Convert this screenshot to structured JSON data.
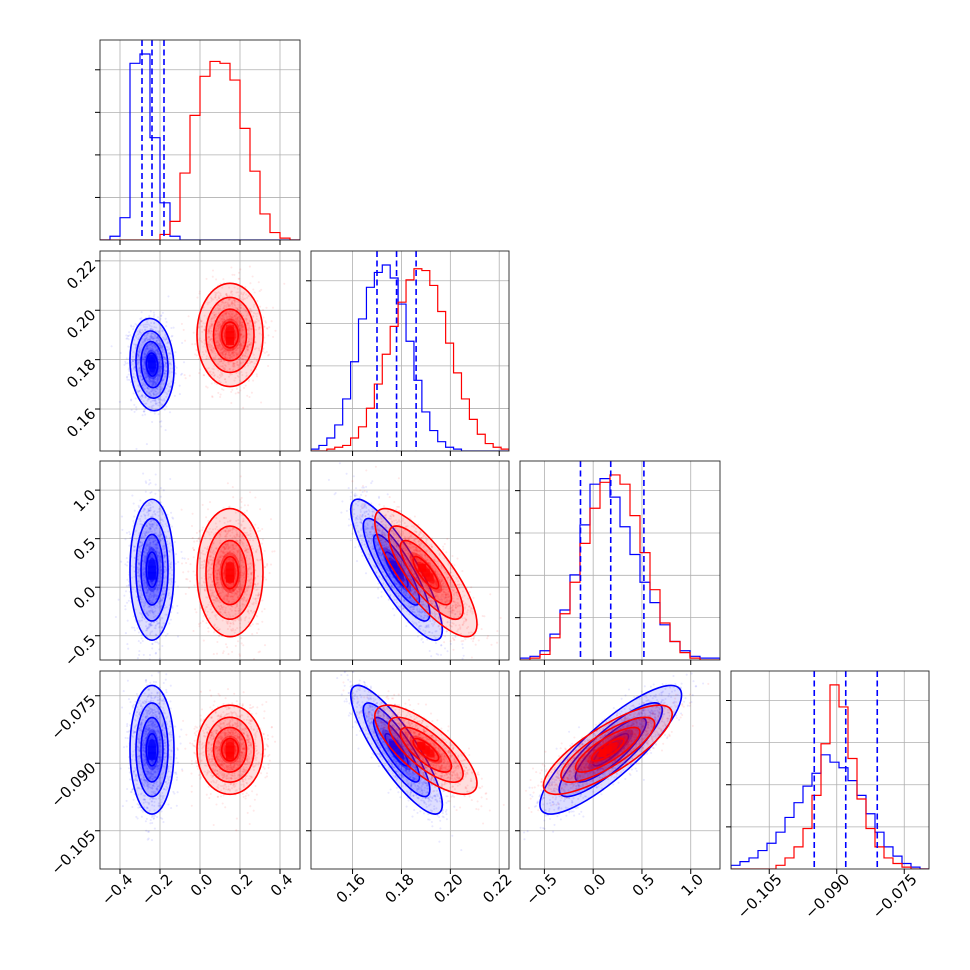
{
  "chart_data": {
    "type": "corner",
    "parameters": 4,
    "grid": true,
    "colors": {
      "series_a": "#0000ff",
      "series_b": "#ff0000"
    },
    "axes": [
      {
        "range": [
          -0.5,
          0.5
        ],
        "ticks": [
          -0.4,
          -0.2,
          0.0,
          0.2,
          0.4
        ],
        "tick_labels": [
          "−0.4",
          "−0.2",
          "0.0",
          "0.2",
          "0.4"
        ]
      },
      {
        "range": [
          0.143,
          0.224
        ],
        "ticks": [
          0.16,
          0.18,
          0.2,
          0.22
        ],
        "tick_labels": [
          "0.16",
          "0.18",
          "0.20",
          "0.22"
        ]
      },
      {
        "range": [
          -0.75,
          1.3
        ],
        "ticks": [
          -0.5,
          0.0,
          0.5,
          1.0
        ],
        "tick_labels": [
          "−0.5",
          "0.0",
          "0.5",
          "1.0"
        ]
      },
      {
        "range": [
          -0.1135,
          -0.0695
        ],
        "ticks": [
          -0.105,
          -0.09,
          -0.075
        ],
        "tick_labels": [
          "−0.105",
          "−0.090",
          "−0.075"
        ]
      }
    ],
    "series": [
      {
        "color": "#0000ff",
        "mean": [
          -0.24,
          0.178,
          0.18,
          -0.087
        ],
        "std": [
          0.05,
          0.0085,
          0.33,
          0.0065
        ],
        "quantile_lines": [
          [
            -0.29,
            -0.24,
            -0.18
          ],
          [
            0.17,
            0.178,
            0.186
          ],
          [
            -0.13,
            0.18,
            0.52
          ],
          [
            -0.095,
            -0.088,
            -0.081
          ]
        ]
      },
      {
        "color": "#ff0000",
        "mean": [
          0.15,
          0.19,
          0.15,
          -0.087
        ],
        "std": [
          0.075,
          0.0095,
          0.3,
          0.0045
        ]
      }
    ],
    "correlations": {
      "blue": {
        "0-1": -0.1,
        "0-2": 0.0,
        "0-3": 0.0,
        "1-2": -0.85,
        "1-3": -0.85,
        "2-3": 0.85
      },
      "red": {
        "0-1": 0.0,
        "0-2": 0.0,
        "0-3": 0.0,
        "1-2": -0.8,
        "1-3": -0.75,
        "2-3": 0.8
      }
    },
    "histograms": {
      "0": {
        "bins": [
          -0.5,
          0.5,
          20
        ],
        "blue": [
          0,
          2,
          12,
          95,
          100,
          55,
          20,
          2,
          0,
          0,
          0,
          0,
          0,
          0,
          0,
          0,
          0,
          0,
          0,
          0
        ],
        "red": [
          0,
          0,
          0,
          0,
          0,
          0,
          3,
          10,
          36,
          67,
          88,
          96,
          95,
          86,
          60,
          37,
          14,
          4,
          1,
          0
        ]
      },
      "1": {
        "bins": [
          0.143,
          0.224,
          25
        ],
        "blue": [
          1,
          3,
          7,
          14,
          28,
          48,
          71,
          88,
          96,
          100,
          93,
          79,
          59,
          38,
          21,
          11,
          5,
          2,
          1,
          0,
          0,
          0,
          0,
          0,
          0
        ],
        "red": [
          0,
          0,
          1,
          2,
          3,
          7,
          13,
          23,
          36,
          52,
          67,
          80,
          92,
          98,
          97,
          89,
          75,
          58,
          42,
          28,
          17,
          9,
          4,
          2,
          1
        ]
      },
      "2": {
        "bins": [
          -0.75,
          1.3,
          20
        ],
        "blue": [
          1,
          2,
          5,
          14,
          27,
          46,
          73,
          95,
          98,
          88,
          72,
          57,
          42,
          31,
          19,
          10,
          5,
          2,
          1,
          1
        ],
        "red": [
          0,
          1,
          3,
          12,
          25,
          42,
          63,
          82,
          96,
          100,
          95,
          78,
          58,
          38,
          20,
          10,
          4,
          1,
          0,
          0
        ]
      },
      "3": {
        "bins": [
          -0.1135,
          -0.0695,
          22
        ],
        "blue": [
          2,
          4,
          6,
          10,
          14,
          20,
          28,
          36,
          45,
          52,
          62,
          58,
          55,
          48,
          40,
          30,
          20,
          12,
          7,
          3,
          1,
          0
        ],
        "red": [
          0,
          0,
          0,
          0,
          0,
          2,
          6,
          12,
          22,
          40,
          68,
          100,
          88,
          60,
          38,
          22,
          12,
          6,
          3,
          1,
          0,
          0
        ]
      }
    }
  }
}
